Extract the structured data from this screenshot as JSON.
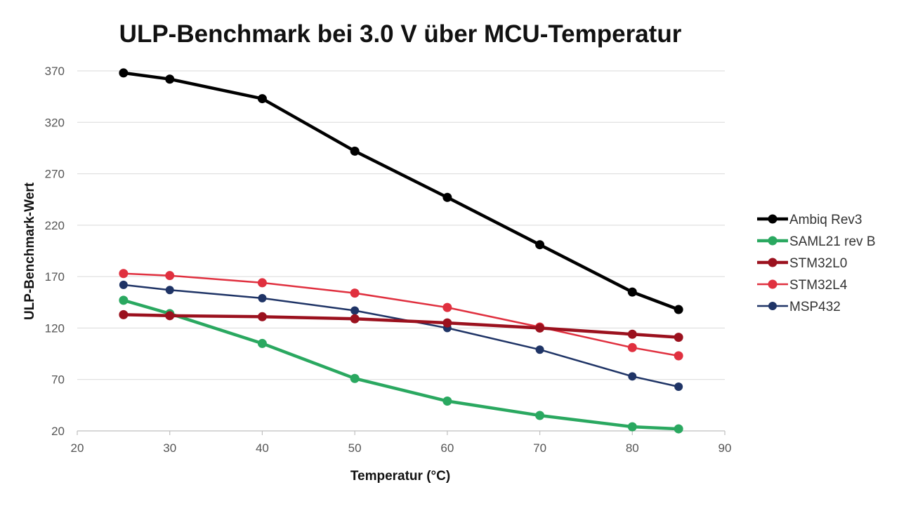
{
  "chart_data": {
    "type": "line",
    "title": "ULP-Benchmark bei 3.0 V über MCU-Temperatur",
    "xlabel": "Temperatur (°C)",
    "ylabel": "ULP-Benchmark-Wert",
    "xlim": [
      20,
      90
    ],
    "ylim": [
      20,
      370
    ],
    "xticks": [
      "20",
      "30",
      "40",
      "50",
      "60",
      "70",
      "80",
      "90"
    ],
    "yticks": [
      "20",
      "70",
      "120",
      "170",
      "220",
      "270",
      "320",
      "370"
    ],
    "grid": "horizontal",
    "legend_position": "right",
    "series": [
      {
        "name": "Ambiq Rev3",
        "color": "#000000",
        "points": [
          [
            25,
            368
          ],
          [
            30,
            362
          ],
          [
            40,
            343
          ],
          [
            50,
            292
          ],
          [
            60,
            247
          ],
          [
            70,
            201
          ],
          [
            80,
            155
          ],
          [
            85,
            138
          ]
        ]
      },
      {
        "name": "SAML21 rev B",
        "color": "#2aa860",
        "points": [
          [
            25,
            147
          ],
          [
            30,
            134
          ],
          [
            40,
            105
          ],
          [
            50,
            71
          ],
          [
            60,
            49
          ],
          [
            70,
            35
          ],
          [
            80,
            24
          ],
          [
            85,
            22
          ]
        ]
      },
      {
        "name": "STM32L0",
        "color": "#9b111e",
        "points": [
          [
            25,
            133
          ],
          [
            30,
            132
          ],
          [
            40,
            131
          ],
          [
            50,
            129
          ],
          [
            60,
            125
          ],
          [
            70,
            120
          ],
          [
            80,
            114
          ],
          [
            85,
            111
          ]
        ]
      },
      {
        "name": "STM32L4",
        "color": "#e0303f",
        "points": [
          [
            25,
            173
          ],
          [
            30,
            171
          ],
          [
            40,
            164
          ],
          [
            50,
            154
          ],
          [
            60,
            140
          ],
          [
            70,
            121
          ],
          [
            80,
            101
          ],
          [
            85,
            93
          ]
        ]
      },
      {
        "name": "MSP432",
        "color": "#1f3466",
        "points": [
          [
            25,
            162
          ],
          [
            30,
            157
          ],
          [
            40,
            149
          ],
          [
            50,
            137
          ],
          [
            60,
            120
          ],
          [
            70,
            99
          ],
          [
            80,
            73
          ],
          [
            85,
            63
          ]
        ]
      }
    ]
  }
}
